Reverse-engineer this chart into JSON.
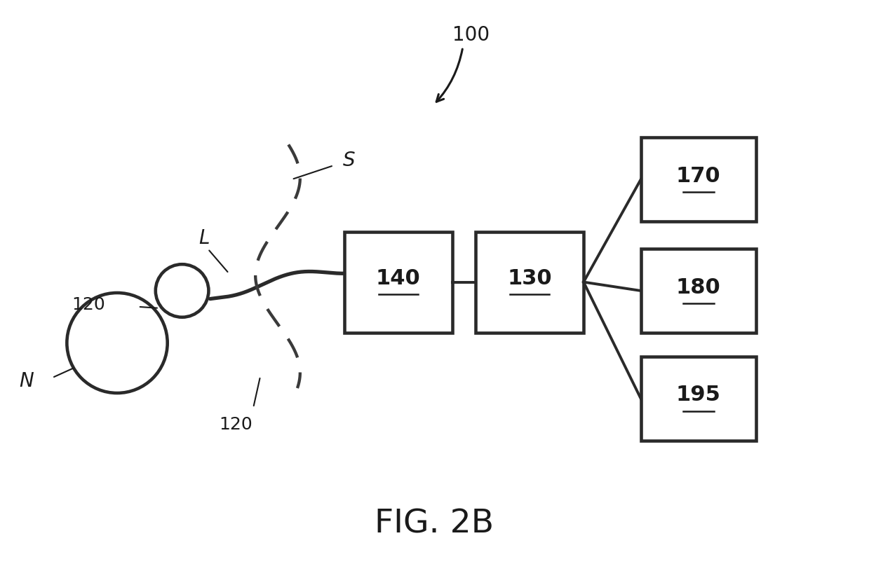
{
  "bg_color": "#ffffff",
  "line_color": "#2a2a2a",
  "dashed_color": "#3a3a3a",
  "text_color": "#1a1a1a",
  "figure_label": "FIG. 2B",
  "ref_100": "100",
  "ref_N": "N",
  "ref_L": "L",
  "ref_120a": "120",
  "ref_120b": "120",
  "ref_S": "S",
  "ref_140": "140",
  "ref_130": "130",
  "ref_170": "170",
  "ref_180": "180",
  "ref_195": "195",
  "font_size_labels": 16,
  "font_size_boxes": 22,
  "font_size_fig": 34,
  "font_size_ref100": 18,
  "line_width": 2.8
}
